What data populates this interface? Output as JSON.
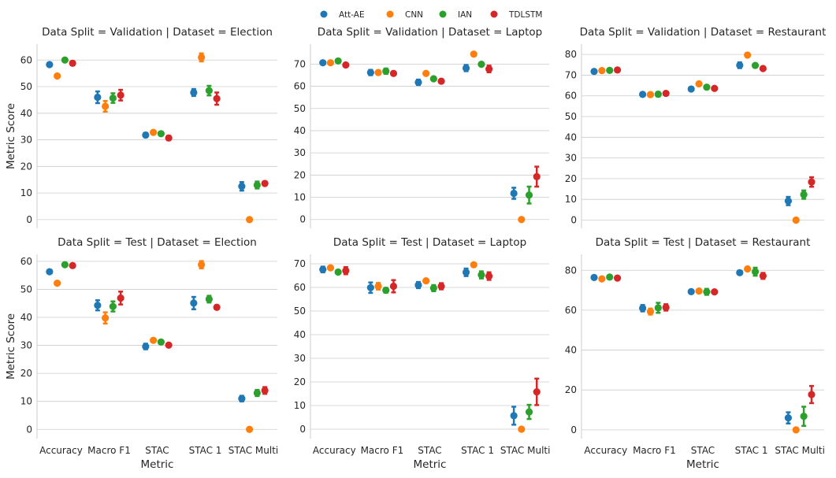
{
  "legend": {
    "items": [
      {
        "label": "Att-AE",
        "color": "#1f77b4"
      },
      {
        "label": "CNN",
        "color": "#ff7f0e"
      },
      {
        "label": "IAN",
        "color": "#2ca02c"
      },
      {
        "label": "TDLSTM",
        "color": "#d62728"
      }
    ]
  },
  "chart_data": [
    {
      "type": "scatter",
      "title": "Data Split = Validation | Dataset = Election",
      "xlabel": "",
      "ylabel": "Metric Score",
      "categories": [
        "Accuracy",
        "Macro F1",
        "STAC",
        "STAC 1",
        "STAC Multi"
      ],
      "ylim": [
        -3.3,
        66
      ],
      "yticks": [
        0,
        10,
        20,
        30,
        40,
        50,
        60
      ],
      "series": [
        {
          "name": "Att-AE",
          "values": [
            58.3,
            46.0,
            31.8,
            47.8,
            12.5
          ],
          "err": [
            0.6,
            2.2,
            0.8,
            1.3,
            1.6
          ]
        },
        {
          "name": "CNN",
          "values": [
            54.0,
            42.6,
            32.8,
            61.0,
            0.0
          ],
          "err": [
            0.5,
            2.0,
            0.5,
            1.5,
            0.0
          ]
        },
        {
          "name": "IAN",
          "values": [
            60.0,
            45.7,
            32.3,
            48.5,
            13.0
          ],
          "err": [
            0.5,
            1.8,
            0.7,
            1.8,
            1.3
          ]
        },
        {
          "name": "TDLSTM",
          "values": [
            58.8,
            46.8,
            30.7,
            45.5,
            13.6
          ],
          "err": [
            0.6,
            2.0,
            0.8,
            2.3,
            0.7
          ]
        }
      ]
    },
    {
      "type": "scatter",
      "title": "Data Split = Validation | Dataset = Laptop",
      "xlabel": "",
      "ylabel": "",
      "categories": [
        "Accuracy",
        "Macro F1",
        "STAC",
        "STAC 1",
        "STAC Multi"
      ],
      "ylim": [
        -4,
        79
      ],
      "yticks": [
        0,
        10,
        20,
        30,
        40,
        50,
        60,
        70
      ],
      "series": [
        {
          "name": "Att-AE",
          "values": [
            70.6,
            66.2,
            61.8,
            68.2,
            11.8
          ],
          "err": [
            0.6,
            1.2,
            1.2,
            1.4,
            2.5
          ]
        },
        {
          "name": "CNN",
          "values": [
            70.6,
            66.2,
            65.8,
            74.5,
            0.0
          ],
          "err": [
            0.5,
            0.9,
            0.7,
            0.6,
            0.0
          ]
        },
        {
          "name": "IAN",
          "values": [
            71.4,
            66.8,
            63.4,
            69.9,
            11.0
          ],
          "err": [
            0.7,
            1.2,
            0.8,
            0.7,
            3.8
          ]
        },
        {
          "name": "TDLSTM",
          "values": [
            69.6,
            65.8,
            62.3,
            67.8,
            19.3
          ],
          "err": [
            0.6,
            0.8,
            0.6,
            1.5,
            4.5
          ]
        }
      ]
    },
    {
      "type": "scatter",
      "title": "Data Split = Validation | Dataset = Restaurant",
      "xlabel": "",
      "ylabel": "",
      "categories": [
        "Accuracy",
        "Macro F1",
        "STAC",
        "STAC 1",
        "STAC Multi"
      ],
      "ylim": [
        -4,
        85
      ],
      "yticks": [
        0,
        10,
        20,
        30,
        40,
        50,
        60,
        70,
        80
      ],
      "series": [
        {
          "name": "Att-AE",
          "values": [
            71.8,
            60.7,
            63.3,
            74.8,
            9.2
          ],
          "err": [
            0.6,
            0.6,
            0.6,
            1.4,
            2.0
          ]
        },
        {
          "name": "CNN",
          "values": [
            72.2,
            60.6,
            65.8,
            79.7,
            0.0
          ],
          "err": [
            0.5,
            1.0,
            0.5,
            0.6,
            0.0
          ]
        },
        {
          "name": "IAN",
          "values": [
            72.3,
            60.8,
            64.2,
            74.7,
            12.3
          ],
          "err": [
            0.7,
            1.1,
            0.6,
            0.8,
            2.0
          ]
        },
        {
          "name": "TDLSTM",
          "values": [
            72.5,
            61.2,
            63.6,
            73.2,
            18.4
          ],
          "err": [
            0.6,
            0.6,
            0.4,
            0.7,
            2.3
          ]
        }
      ]
    },
    {
      "type": "scatter",
      "title": "Data Split = Test | Dataset = Election",
      "xlabel": "Metric",
      "ylabel": "Metric Score",
      "categories": [
        "Accuracy",
        "Macro F1",
        "STAC",
        "STAC 1",
        "STAC Multi"
      ],
      "ylim": [
        -3.3,
        62.5
      ],
      "yticks": [
        0,
        10,
        20,
        30,
        40,
        50,
        60
      ],
      "series": [
        {
          "name": "Att-AE",
          "values": [
            56.3,
            44.3,
            29.6,
            45.1,
            11.0
          ],
          "err": [
            0.6,
            1.8,
            1.0,
            2.2,
            1.0
          ]
        },
        {
          "name": "CNN",
          "values": [
            52.2,
            39.8,
            31.8,
            58.8,
            0.0
          ],
          "err": [
            0.5,
            2.0,
            0.5,
            1.3,
            0.0
          ]
        },
        {
          "name": "IAN",
          "values": [
            58.8,
            43.9,
            31.2,
            46.5,
            13.0
          ],
          "err": [
            0.5,
            1.8,
            0.5,
            1.2,
            1.1
          ]
        },
        {
          "name": "TDLSTM",
          "values": [
            58.5,
            46.9,
            30.1,
            43.6,
            13.9
          ],
          "err": [
            0.6,
            2.3,
            0.5,
            0.7,
            1.2
          ]
        }
      ]
    },
    {
      "type": "scatter",
      "title": "Data Split = Test | Dataset = Laptop",
      "xlabel": "Metric",
      "ylabel": "",
      "categories": [
        "Accuracy",
        "Macro F1",
        "STAC",
        "STAC 1",
        "STAC Multi"
      ],
      "ylim": [
        -4,
        74
      ],
      "yticks": [
        0,
        10,
        20,
        30,
        40,
        50,
        60,
        70
      ],
      "series": [
        {
          "name": "Att-AE",
          "values": [
            67.6,
            59.9,
            61.0,
            66.4,
            5.7
          ],
          "err": [
            1.2,
            2.2,
            1.3,
            1.6,
            3.8
          ]
        },
        {
          "name": "CNN",
          "values": [
            68.3,
            60.5,
            62.8,
            69.6,
            0.0
          ],
          "err": [
            0.7,
            1.4,
            0.6,
            0.6,
            0.0
          ]
        },
        {
          "name": "IAN",
          "values": [
            66.5,
            58.8,
            59.7,
            65.3,
            7.3
          ],
          "err": [
            0.8,
            1.0,
            1.3,
            1.5,
            3.0
          ]
        },
        {
          "name": "TDLSTM",
          "values": [
            67.1,
            60.5,
            60.5,
            64.8,
            15.8
          ],
          "err": [
            1.5,
            2.6,
            1.3,
            1.6,
            5.6
          ]
        }
      ]
    },
    {
      "type": "scatter",
      "title": "Data Split = Test | Dataset = Restaurant",
      "xlabel": "Metric",
      "ylabel": "",
      "categories": [
        "Accuracy",
        "Macro F1",
        "STAC",
        "STAC 1",
        "STAC Multi"
      ],
      "ylim": [
        -4.4,
        88
      ],
      "yticks": [
        0,
        20,
        40,
        60,
        80
      ],
      "series": [
        {
          "name": "Att-AE",
          "values": [
            76.4,
            61.0,
            69.3,
            78.8,
            6.0
          ],
          "err": [
            0.6,
            1.6,
            0.6,
            0.9,
            2.8
          ]
        },
        {
          "name": "CNN",
          "values": [
            75.7,
            59.3,
            69.6,
            80.7,
            0.0
          ],
          "err": [
            0.6,
            1.5,
            0.5,
            0.5,
            0.0
          ]
        },
        {
          "name": "IAN",
          "values": [
            76.6,
            61.2,
            69.2,
            79.3,
            6.8
          ],
          "err": [
            0.8,
            2.5,
            1.5,
            2.0,
            4.8
          ]
        },
        {
          "name": "TDLSTM",
          "values": [
            76.1,
            61.4,
            69.2,
            77.2,
            17.7
          ],
          "err": [
            0.6,
            1.6,
            0.6,
            1.5,
            4.3
          ]
        }
      ]
    }
  ]
}
